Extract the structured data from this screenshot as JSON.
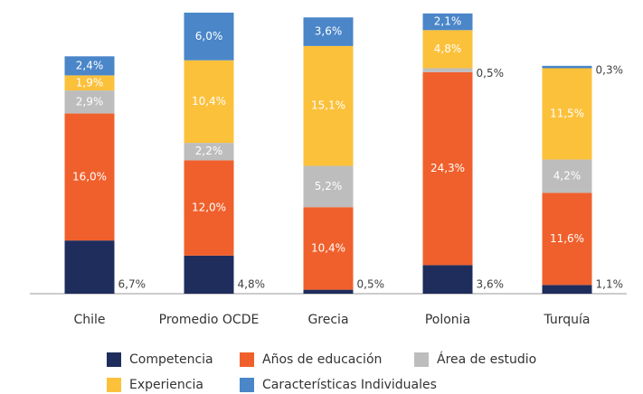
{
  "chart_data": {
    "type": "stacked_bar",
    "categories": [
      "Chile",
      "Promedio OCDE",
      "Grecia",
      "Polonia",
      "Turquía"
    ],
    "series": [
      {
        "name": "Competencia",
        "color": "#1f2d5c",
        "values": [
          6.7,
          4.8,
          0.5,
          3.6,
          1.1
        ],
        "value_labels": [
          "6,7%",
          "4,8%",
          "0,5%",
          "3,6%",
          "1,1%"
        ]
      },
      {
        "name": "Años de educación",
        "color": "#f0602c",
        "values": [
          16.0,
          12.0,
          10.4,
          24.3,
          11.6
        ],
        "value_labels": [
          "16,0%",
          "12,0%",
          "10,4%",
          "24,3%",
          "11,6%"
        ]
      },
      {
        "name": "Área de estudio",
        "color": "#bdbdbd",
        "values": [
          2.9,
          2.2,
          5.2,
          0.5,
          4.2
        ],
        "value_labels": [
          "2,9%",
          "2,2%",
          "5,2%",
          "0,5%",
          "4,2%"
        ]
      },
      {
        "name": "Experiencia",
        "color": "#fcc13b",
        "values": [
          1.9,
          10.4,
          15.1,
          4.8,
          11.5
        ],
        "value_labels": [
          "1,9%",
          "10,4%",
          "15,1%",
          "4,8%",
          "11,5%"
        ]
      },
      {
        "name": "Características Individuales",
        "color": "#4a86c8",
        "values": [
          2.4,
          6.0,
          3.6,
          2.1,
          0.3
        ],
        "value_labels": [
          "2,4%",
          "6,0%",
          "3,6%",
          "2,1%",
          "0,3%"
        ]
      }
    ]
  }
}
